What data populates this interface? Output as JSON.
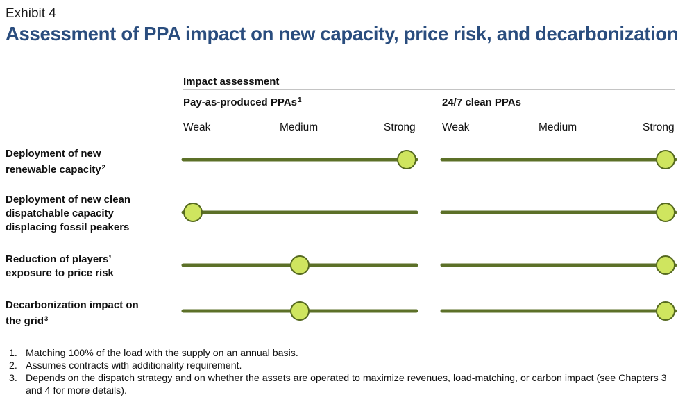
{
  "header": {
    "exhibit": "Exhibit 4",
    "title": "Assessment of PPA impact on new capacity, price risk, and decarbonization"
  },
  "assessment": {
    "header": "Impact assessment",
    "groups": [
      {
        "title": "Pay-as-produced PPAs",
        "note": "1"
      },
      {
        "title": "24/7 clean PPAs",
        "note": ""
      }
    ],
    "scale": [
      "Weak",
      "Medium",
      "Strong"
    ],
    "rows": [
      {
        "label_lines": [
          "Deployment of new",
          "renewable capacity"
        ],
        "note": "2",
        "values": [
          1.0,
          1.0
        ]
      },
      {
        "label_lines": [
          "Deployment of new clean",
          "dispatchable capacity",
          "displacing fossil peakers"
        ],
        "note": "",
        "values": [
          0.0,
          1.0
        ]
      },
      {
        "label_lines": [
          "Reduction of players’",
          "exposure to price risk"
        ],
        "note": "",
        "values": [
          0.5,
          1.0
        ]
      },
      {
        "label_lines": [
          "Decarbonization impact on",
          "the grid"
        ],
        "note": "3",
        "values": [
          0.5,
          1.0
        ]
      }
    ]
  },
  "colors": {
    "title": "#2a4d7e",
    "track": "#5c7028",
    "knob_fill": "#cfe55f",
    "knob_stroke": "#55691f"
  },
  "footnotes": [
    {
      "num": "1.",
      "text": "Matching 100% of the load with the supply on an annual basis."
    },
    {
      "num": "2.",
      "text": "Assumes contracts with additionality requirement."
    },
    {
      "num": "3.",
      "text": "Depends on the dispatch strategy and on whether the assets are operated to maximize revenues, load-matching, or carbon impact (see Chapters 3 and 4 for more details)."
    }
  ]
}
